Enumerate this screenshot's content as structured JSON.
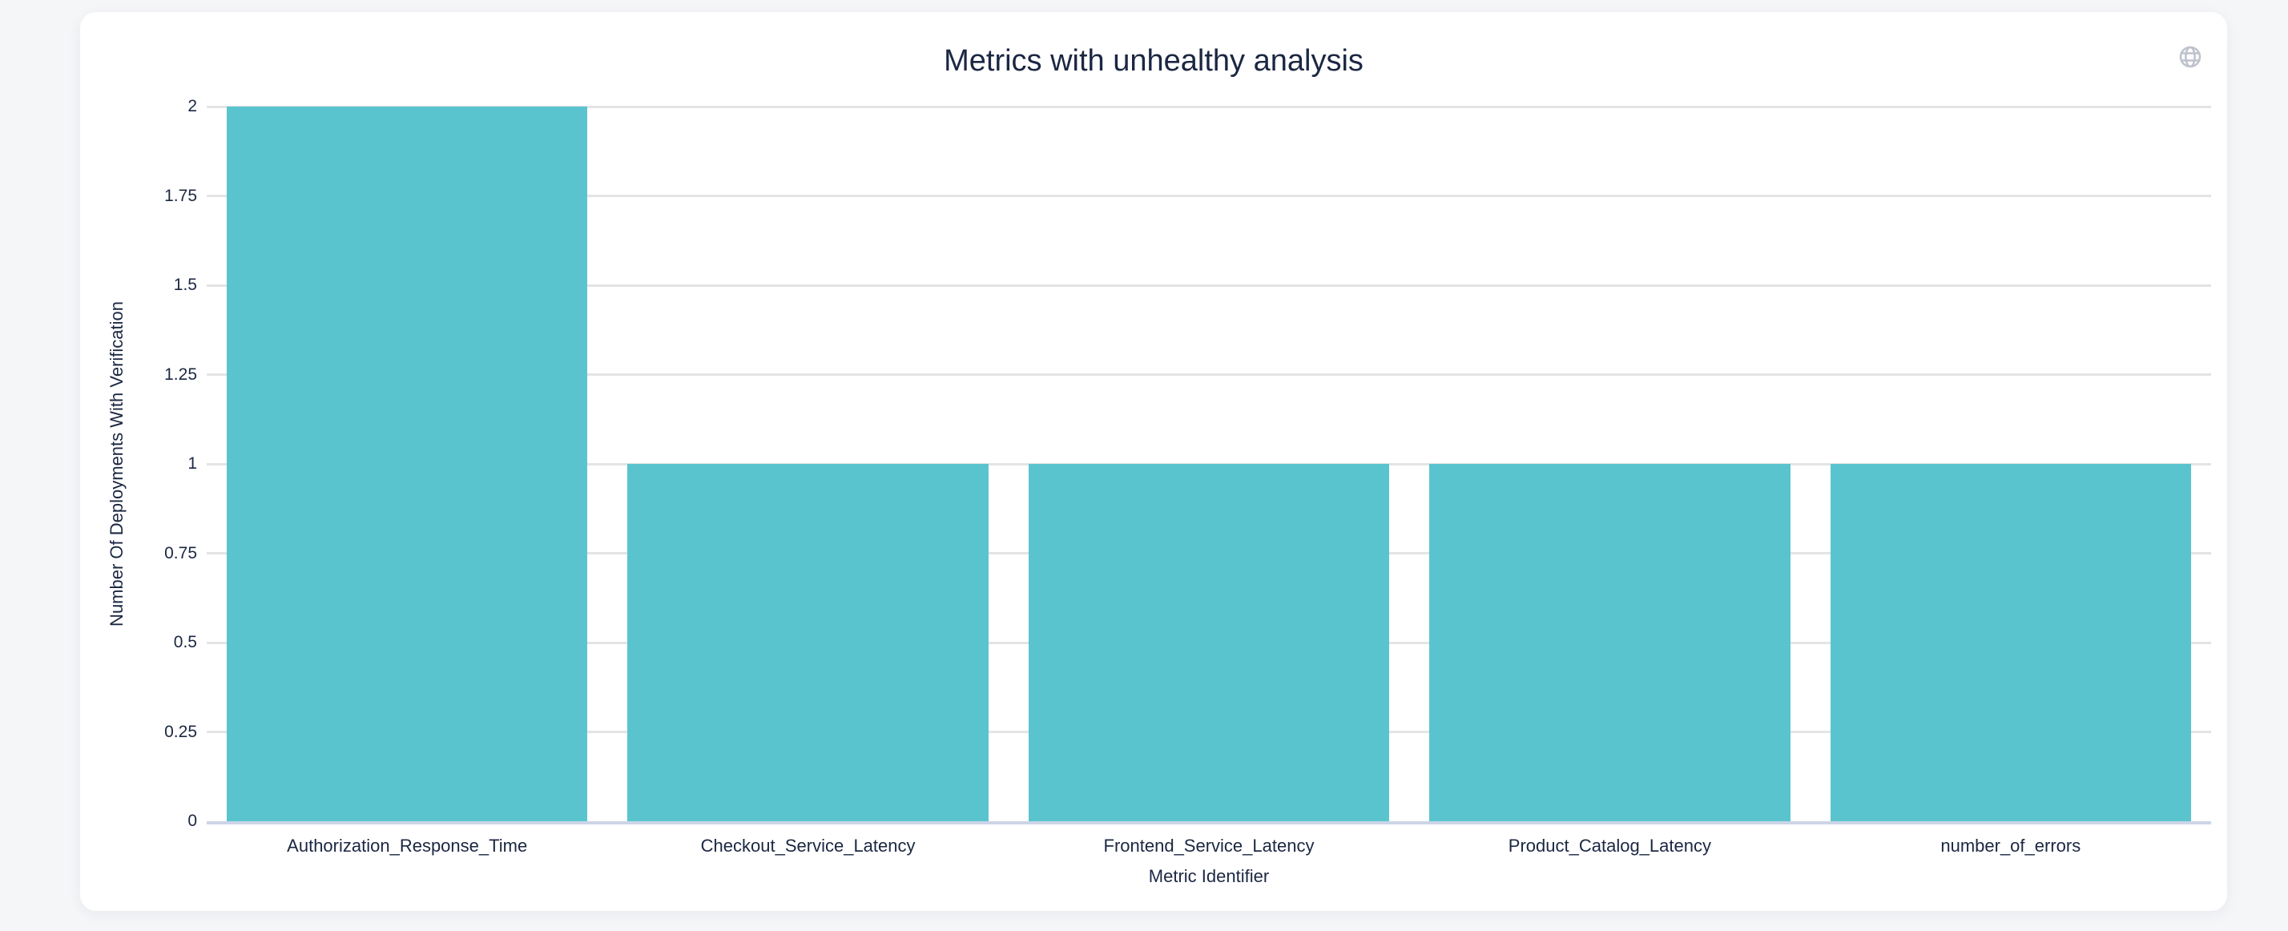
{
  "header": {
    "icons": [
      "globe-icon"
    ]
  },
  "colors": {
    "page_background": "#f5f6f8",
    "card_background": "#ffffff",
    "bar": "#5ac4ce",
    "text": "#1b2742",
    "gridline": "#e4e4e4",
    "axis_line": "#ccd5e6",
    "globe_icon": "#bdc2cc"
  },
  "chart_data": {
    "type": "bar",
    "title": "Metrics with unhealthy analysis",
    "categories": [
      "Authorization_Response_Time",
      "Checkout_Service_Latency",
      "Frontend_Service_Latency",
      "Product_Catalog_Latency",
      "number_of_errors"
    ],
    "values": [
      2,
      1,
      1,
      1,
      1
    ],
    "xlabel": "Metric Identifier",
    "ylabel": "Number Of Deployments With Verification",
    "ylim": [
      0,
      2
    ],
    "yticks": [
      "0",
      "0.25",
      "0.5",
      "0.75",
      "1",
      "1.25",
      "1.5",
      "1.75",
      "2"
    ],
    "grid": true,
    "legend_position": "none",
    "bar_color": "#5ac4ce"
  }
}
